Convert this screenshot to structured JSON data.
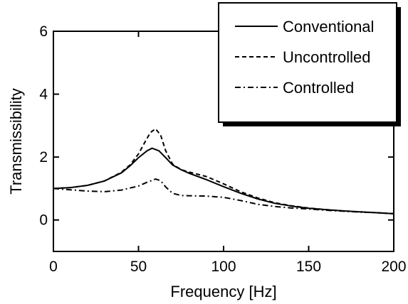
{
  "chart_data": {
    "type": "line",
    "xlabel": "Frequency [Hz]",
    "ylabel": "Transmissibility",
    "xlim": [
      0,
      200
    ],
    "ylim": [
      -1,
      6
    ],
    "xticks": [
      0,
      50,
      100,
      150,
      200
    ],
    "yticks": [
      0,
      2,
      4,
      6
    ],
    "xtick_labels": [
      "0",
      "50",
      "100",
      "150",
      "200"
    ],
    "ytick_labels": [
      "0",
      "2",
      "4",
      "6"
    ],
    "grid": false,
    "legend_position": "top-right",
    "series": [
      {
        "name": "Conventional",
        "style": "solid",
        "x": [
          0,
          10,
          20,
          30,
          40,
          45,
          50,
          55,
          58,
          62,
          66,
          70,
          75,
          80,
          90,
          100,
          110,
          120,
          130,
          140,
          150,
          160,
          170,
          180,
          190,
          200
        ],
        "y": [
          1.0,
          1.03,
          1.1,
          1.24,
          1.5,
          1.72,
          1.98,
          2.2,
          2.28,
          2.2,
          1.98,
          1.75,
          1.6,
          1.48,
          1.28,
          1.06,
          0.85,
          0.67,
          0.53,
          0.44,
          0.37,
          0.33,
          0.29,
          0.26,
          0.23,
          0.2
        ]
      },
      {
        "name": "Uncontrolled",
        "style": "dashed",
        "x": [
          0,
          10,
          20,
          30,
          40,
          45,
          50,
          54,
          57,
          60,
          63,
          66,
          70,
          75,
          80,
          90,
          100,
          110,
          120,
          130,
          140,
          150,
          160,
          170,
          180,
          190,
          200
        ],
        "y": [
          1.0,
          1.03,
          1.1,
          1.24,
          1.52,
          1.75,
          2.1,
          2.5,
          2.78,
          2.9,
          2.7,
          2.2,
          1.78,
          1.6,
          1.52,
          1.38,
          1.15,
          0.9,
          0.7,
          0.55,
          0.45,
          0.38,
          0.33,
          0.29,
          0.26,
          0.23,
          0.2
        ]
      },
      {
        "name": "Controlled",
        "style": "dash-dot",
        "x": [
          0,
          10,
          20,
          30,
          40,
          50,
          55,
          60,
          63,
          66,
          70,
          75,
          80,
          90,
          100,
          110,
          120,
          130,
          140,
          150,
          160,
          170,
          180,
          190,
          200
        ],
        "y": [
          1.0,
          0.96,
          0.92,
          0.9,
          0.95,
          1.08,
          1.2,
          1.3,
          1.25,
          1.05,
          0.85,
          0.78,
          0.77,
          0.76,
          0.72,
          0.62,
          0.5,
          0.43,
          0.38,
          0.35,
          0.31,
          0.28,
          0.25,
          0.23,
          0.2
        ]
      }
    ]
  }
}
